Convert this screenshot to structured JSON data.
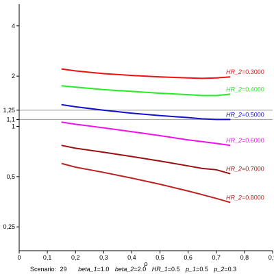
{
  "chart_data": {
    "type": "line",
    "title": "",
    "xlabel": "ρ",
    "ylabel": "",
    "x_scale": "linear",
    "y_scale": "log",
    "xlim": [
      0,
      0.9
    ],
    "ylim": [
      0.18,
      5.4
    ],
    "x_ticks": [
      "0",
      "0,1",
      "0,2",
      "0,3",
      "0,4",
      "0,5",
      "0,6",
      "0,7",
      "0,8",
      "0,9"
    ],
    "y_ticks": [
      {
        "value": 0.25,
        "label": "0,25"
      },
      {
        "value": 0.5,
        "label": "0,5"
      },
      {
        "value": 1,
        "label": "1"
      },
      {
        "value": 1.1,
        "label": "1,1"
      },
      {
        "value": 1.25,
        "label": "1,25"
      },
      {
        "value": 2,
        "label": "2"
      },
      {
        "value": 4,
        "label": "4"
      }
    ],
    "reference_lines": [
      1.1,
      1.25
    ],
    "grid": false,
    "x": [
      0.15,
      0.2,
      0.3,
      0.4,
      0.5,
      0.6,
      0.65,
      0.7,
      0.75
    ],
    "series": [
      {
        "name": "HR_2",
        "label_value": "0.3000",
        "color": "#ee1111",
        "values": [
          2.21,
          2.15,
          2.07,
          2.02,
          1.98,
          1.95,
          1.94,
          1.95,
          1.98
        ]
      },
      {
        "name": "HR_2",
        "label_value": "0.4000",
        "color": "#22ee22",
        "values": [
          1.75,
          1.72,
          1.66,
          1.62,
          1.58,
          1.55,
          1.53,
          1.53,
          1.56
        ]
      },
      {
        "name": "HR_2",
        "label_value": "0.5000",
        "color": "#1111cc",
        "values": [
          1.35,
          1.31,
          1.25,
          1.2,
          1.16,
          1.13,
          1.11,
          1.1,
          1.1
        ]
      },
      {
        "name": "HR_2",
        "label_value": "0.6000",
        "color": "#ee11ee",
        "values": [
          1.06,
          1.03,
          0.98,
          0.93,
          0.88,
          0.83,
          0.81,
          0.79,
          0.77
        ]
      },
      {
        "name": "HR_2",
        "label_value": "0.7000",
        "color": "#991111",
        "values": [
          0.77,
          0.74,
          0.7,
          0.66,
          0.62,
          0.58,
          0.56,
          0.55,
          0.52
        ]
      },
      {
        "name": "HR_2",
        "label_value": "0.8000",
        "color": "#bb2222",
        "values": [
          0.6,
          0.57,
          0.53,
          0.49,
          0.45,
          0.41,
          0.39,
          0.37,
          0.35
        ]
      }
    ]
  },
  "caption": {
    "scenario_label": "Scenario:",
    "scenario_value": "29",
    "params": [
      {
        "name": "beta_1",
        "value": "1.0"
      },
      {
        "name": "beta_2",
        "value": "2.0"
      },
      {
        "name": "HR_1",
        "value": "0.5"
      },
      {
        "name": "p_1",
        "value": "0.5"
      },
      {
        "name": "p_2",
        "value": "0.3"
      }
    ]
  }
}
